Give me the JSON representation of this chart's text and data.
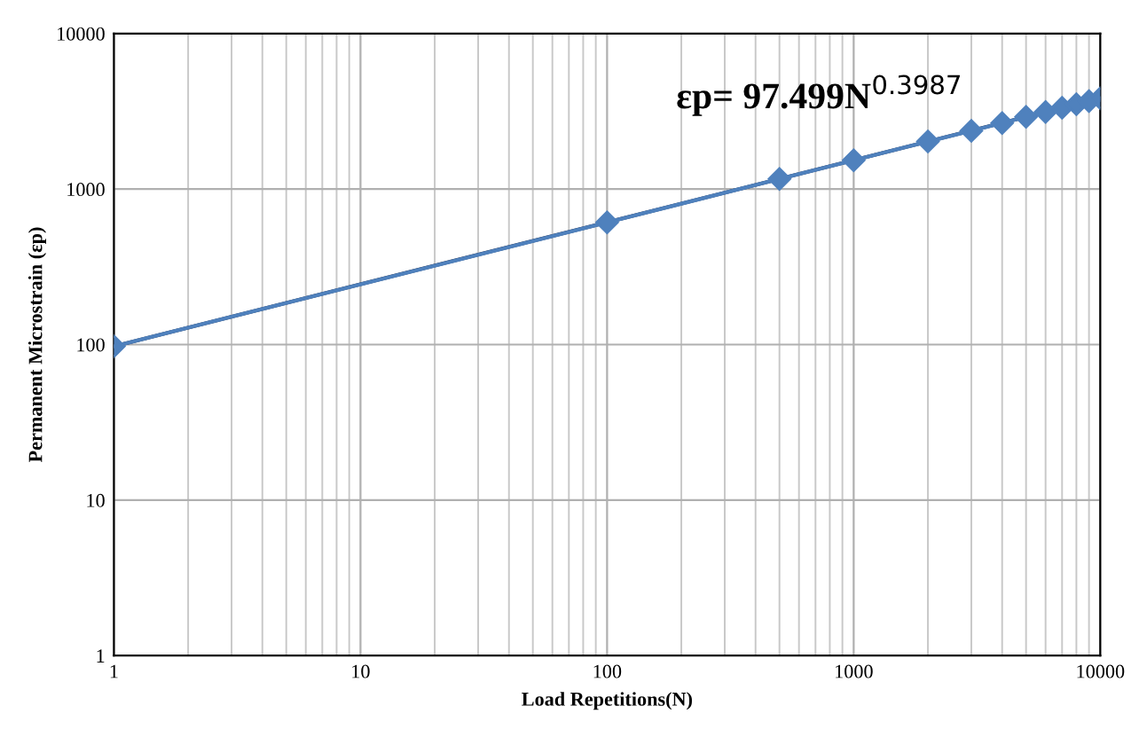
{
  "chart_data": {
    "type": "line",
    "xlabel": "Load Repetitions(N)",
    "ylabel": "Permanent Microstrain (εp)",
    "log": "xy",
    "grid": true,
    "xlim": [
      1,
      10000
    ],
    "xticks": [
      1,
      10,
      100,
      1000,
      10000
    ],
    "ylim": [
      1,
      10000
    ],
    "yticks": [
      1,
      10,
      100,
      1000,
      10000
    ],
    "series": [
      {
        "color": "#1f2f4f",
        "marker": "none",
        "x": [
          1,
          10000
        ],
        "values": [
          97.5,
          3835
        ]
      },
      {
        "color": "#4f81bd",
        "marker": "diamond",
        "x": [
          1,
          100,
          500,
          1000,
          2000,
          3000,
          4000,
          5000,
          6000,
          7000,
          8000,
          9000,
          10000
        ],
        "values": [
          97.5,
          610,
          1160,
          1530,
          2020,
          2370,
          2660,
          2910,
          3130,
          3330,
          3510,
          3680,
          3835
        ]
      }
    ],
    "annotations": [
      "εp= 97.499N$^{0.3987}$"
    ]
  }
}
